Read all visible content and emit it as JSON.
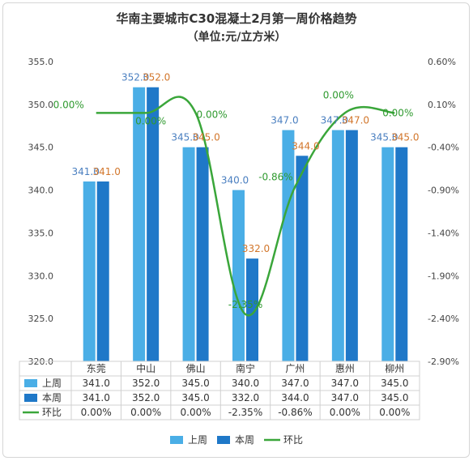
{
  "chart_data": {
    "type": "bar",
    "title": "华南主要城市C30混凝土2月第一周价格趋势",
    "subtitle": "（单位:元/立方米）",
    "categories": [
      "东莞",
      "中山",
      "佛山",
      "南宁",
      "广州",
      "惠州",
      "柳州"
    ],
    "series": [
      {
        "name": "上周",
        "type": "bar",
        "axis": "left",
        "values": [
          341.0,
          352.0,
          345.0,
          340.0,
          347.0,
          347.0,
          345.0
        ],
        "labels": [
          "341.0",
          "352.0",
          "345.0",
          "340.0",
          "347.0",
          "347.0",
          "345.0"
        ],
        "color": "#4aaee6"
      },
      {
        "name": "本周",
        "type": "bar",
        "axis": "left",
        "values": [
          341.0,
          352.0,
          345.0,
          332.0,
          344.0,
          347.0,
          345.0
        ],
        "labels": [
          "341.0",
          "352.0",
          "345.0",
          "332.0",
          "344.0",
          "347.0",
          "345.0"
        ],
        "color": "#1f78c8"
      },
      {
        "name": "环比",
        "type": "line",
        "axis": "right",
        "values": [
          0.0,
          0.0,
          0.0,
          -2.35,
          -0.86,
          0.0,
          0.0
        ],
        "labels": [
          "0.00%",
          "0.00%",
          "0.00%",
          "-2.35%",
          "-0.86%",
          "0.00%",
          "0.00%"
        ],
        "color": "#3aa63a"
      }
    ],
    "y_left": {
      "min": 320,
      "max": 355,
      "ticks": [
        "320.0",
        "325.0",
        "330.0",
        "335.0",
        "340.0",
        "345.0",
        "350.0",
        "355.0"
      ]
    },
    "y_right": {
      "min": -2.9,
      "max": 0.6,
      "ticks": [
        "-2.90%",
        "-2.40%",
        "-1.90%",
        "-1.40%",
        "-0.90%",
        "-0.40%",
        "0.10%",
        "0.60%"
      ]
    },
    "table": {
      "rows": [
        {
          "label": "上周",
          "cells": [
            "341.0",
            "352.0",
            "345.0",
            "340.0",
            "347.0",
            "347.0",
            "345.0"
          ]
        },
        {
          "label": "本周",
          "cells": [
            "341.0",
            "352.0",
            "345.0",
            "332.0",
            "344.0",
            "347.0",
            "345.0"
          ]
        },
        {
          "label": "环比",
          "cells": [
            "0.00%",
            "0.00%",
            "0.00%",
            "-2.35%",
            "-0.86%",
            "0.00%",
            "0.00%"
          ]
        }
      ]
    },
    "legend": {
      "position": "bottom",
      "items": [
        "上周",
        "本周",
        "环比"
      ]
    },
    "colors": {
      "last_week": "#4aaee6",
      "this_week": "#1f78c8",
      "change": "#3aa63a",
      "last_label": "#4a7fc0",
      "this_label": "#d2762b",
      "change_label": "#2f9a2f"
    },
    "grid": false
  }
}
